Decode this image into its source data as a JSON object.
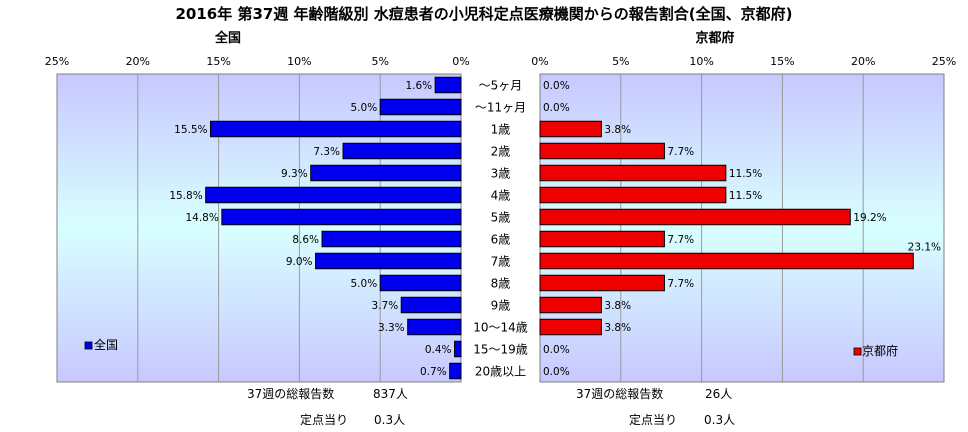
{
  "title": "2016年 第37週 年齢階級別 水痘患者の小児科定点医療機関からの報告割合(全国、京都府)",
  "colors": {
    "national": "#0000ee",
    "kyoto": "#ee0000",
    "plot_bg_top": "#c8c8ff",
    "plot_bg_mid": "#d8ffff"
  },
  "chart_data": [
    {
      "type": "bar",
      "orientation": "horizontal",
      "direction": "right-to-left",
      "title": "全国",
      "legend": "全国",
      "legend_position": "bottom-left",
      "xlim": [
        0,
        25
      ],
      "ticks": [
        "25%",
        "20%",
        "15%",
        "10%",
        "5%",
        "0%"
      ],
      "grid": true,
      "categories": [
        "～5ヶ月",
        "～11ヶ月",
        "1歳",
        "2歳",
        "3歳",
        "4歳",
        "5歳",
        "6歳",
        "7歳",
        "8歳",
        "9歳",
        "10～14歳",
        "15～19歳",
        "20歳以上"
      ],
      "values": [
        1.6,
        5.0,
        15.5,
        7.3,
        9.3,
        15.8,
        14.8,
        8.6,
        9.0,
        5.0,
        3.7,
        3.3,
        0.4,
        0.7
      ],
      "labels": [
        "1.6%",
        "5.0%",
        "15.5%",
        "7.3%",
        "9.3%",
        "15.8%",
        "14.8%",
        "8.6%",
        "9.0%",
        "5.0%",
        "3.7%",
        "3.3%",
        "0.4%",
        "0.7%"
      ]
    },
    {
      "type": "bar",
      "orientation": "horizontal",
      "direction": "left-to-right",
      "title": "京都府",
      "legend": "京都府",
      "legend_position": "bottom-right",
      "xlim": [
        0,
        25
      ],
      "ticks": [
        "0%",
        "5%",
        "10%",
        "15%",
        "20%",
        "25%"
      ],
      "grid": true,
      "categories": [
        "～5ヶ月",
        "～11ヶ月",
        "1歳",
        "2歳",
        "3歳",
        "4歳",
        "5歳",
        "6歳",
        "7歳",
        "8歳",
        "9歳",
        "10～14歳",
        "15～19歳",
        "20歳以上"
      ],
      "values": [
        0.0,
        0.0,
        3.8,
        7.7,
        11.5,
        11.5,
        19.2,
        7.7,
        23.1,
        7.7,
        3.8,
        3.8,
        0.0,
        0.0
      ],
      "labels": [
        "0.0%",
        "0.0%",
        "3.8%",
        "7.7%",
        "11.5%",
        "11.5%",
        "19.2%",
        "7.7%",
        "23.1%",
        "7.7%",
        "3.8%",
        "3.8%",
        "0.0%",
        "0.0%"
      ]
    }
  ],
  "footer": {
    "national": {
      "total_label": "37週の総報告数",
      "total_value": "837人",
      "per_label": "定点当り",
      "per_value": "0.3人"
    },
    "kyoto": {
      "total_label": "37週の総報告数",
      "total_value": "26人",
      "per_label": "定点当り",
      "per_value": "0.3人"
    }
  }
}
